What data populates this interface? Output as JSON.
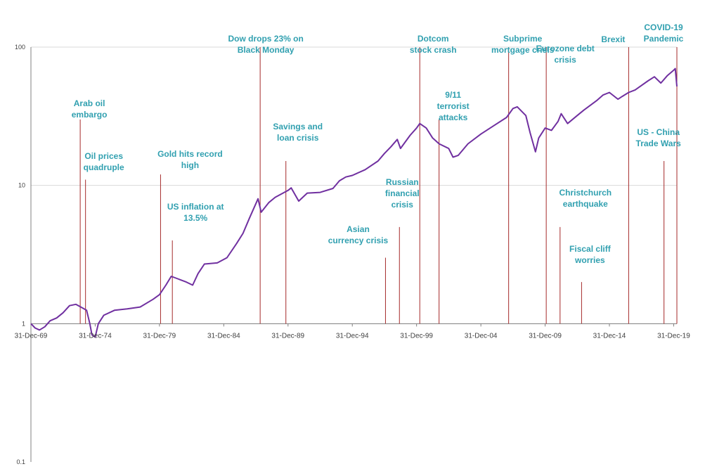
{
  "chart_data": {
    "type": "line",
    "title": "",
    "xlabel": "",
    "ylabel": "",
    "y_scale": "log",
    "ylim": [
      0.1,
      100
    ],
    "xlim": [
      "1969-12-31",
      "2020-03-31"
    ],
    "grid": {
      "horizontal": true,
      "vertical": false
    },
    "line_color": "#7030a0",
    "event_line_color": "#a52a2a",
    "annotation_color": "#31a0b0",
    "y_ticks": [
      {
        "value": 0.1,
        "label": "0.1"
      },
      {
        "value": 1,
        "label": "1"
      },
      {
        "value": 10,
        "label": "10"
      },
      {
        "value": 100,
        "label": "100"
      }
    ],
    "x_ticks": [
      {
        "date": "1969-12-31",
        "label": "31-Dec-69"
      },
      {
        "date": "1974-12-31",
        "label": "31-Dec-74"
      },
      {
        "date": "1979-12-31",
        "label": "31-Dec-79"
      },
      {
        "date": "1984-12-31",
        "label": "31-Dec-84"
      },
      {
        "date": "1989-12-31",
        "label": "31-Dec-89"
      },
      {
        "date": "1994-12-31",
        "label": "31-Dec-94"
      },
      {
        "date": "1999-12-31",
        "label": "31-Dec-99"
      },
      {
        "date": "2004-12-31",
        "label": "31-Dec-04"
      },
      {
        "date": "2009-12-31",
        "label": "31-Dec-09"
      },
      {
        "date": "2014-12-31",
        "label": "31-Dec-14"
      },
      {
        "date": "2019-12-31",
        "label": "31-Dec-19"
      }
    ],
    "series": [
      {
        "points": [
          [
            "1969-12-31",
            1.0
          ],
          [
            "1970-04-30",
            0.93
          ],
          [
            "1970-08-31",
            0.9
          ],
          [
            "1971-01-31",
            0.95
          ],
          [
            "1971-06-30",
            1.05
          ],
          [
            "1971-12-31",
            1.1
          ],
          [
            "1972-06-30",
            1.2
          ],
          [
            "1972-12-31",
            1.35
          ],
          [
            "1973-06-30",
            1.38
          ],
          [
            "1973-12-31",
            1.3
          ],
          [
            "1974-04-30",
            1.25
          ],
          [
            "1974-07-31",
            1.0
          ],
          [
            "1974-09-30",
            0.83
          ],
          [
            "1974-12-31",
            0.8
          ],
          [
            "1975-03-31",
            1.0
          ],
          [
            "1975-08-31",
            1.15
          ],
          [
            "1976-06-30",
            1.25
          ],
          [
            "1977-06-30",
            1.28
          ],
          [
            "1978-06-30",
            1.32
          ],
          [
            "1979-06-30",
            1.5
          ],
          [
            "1979-12-31",
            1.62
          ],
          [
            "1980-06-30",
            1.9
          ],
          [
            "1980-11-30",
            2.2
          ],
          [
            "1981-06-30",
            2.1
          ],
          [
            "1982-01-31",
            2.0
          ],
          [
            "1982-07-31",
            1.9
          ],
          [
            "1982-12-31",
            2.3
          ],
          [
            "1983-06-30",
            2.7
          ],
          [
            "1984-06-30",
            2.75
          ],
          [
            "1985-03-31",
            3.0
          ],
          [
            "1985-12-31",
            3.8
          ],
          [
            "1986-06-30",
            4.5
          ],
          [
            "1986-12-31",
            5.8
          ],
          [
            "1987-08-31",
            8.0
          ],
          [
            "1987-11-30",
            6.4
          ],
          [
            "1988-06-30",
            7.5
          ],
          [
            "1988-12-31",
            8.2
          ],
          [
            "1989-12-31",
            9.2
          ],
          [
            "1990-03-31",
            9.6
          ],
          [
            "1990-10-31",
            7.7
          ],
          [
            "1991-06-30",
            8.8
          ],
          [
            "1992-06-30",
            8.9
          ],
          [
            "1993-06-30",
            9.5
          ],
          [
            "1993-12-31",
            10.8
          ],
          [
            "1994-06-30",
            11.5
          ],
          [
            "1994-12-31",
            11.8
          ],
          [
            "1995-12-31",
            13.0
          ],
          [
            "1996-12-31",
            15.0
          ],
          [
            "1997-06-30",
            17.0
          ],
          [
            "1997-12-31",
            19.0
          ],
          [
            "1998-06-30",
            21.5
          ],
          [
            "1998-09-30",
            18.5
          ],
          [
            "1999-06-30",
            23.0
          ],
          [
            "1999-12-31",
            26.0
          ],
          [
            "2000-03-31",
            28.0
          ],
          [
            "2000-09-30",
            26.0
          ],
          [
            "2001-03-31",
            22.0
          ],
          [
            "2001-09-30",
            20.0
          ],
          [
            "2002-06-30",
            18.5
          ],
          [
            "2002-10-31",
            16.0
          ],
          [
            "2003-03-31",
            16.5
          ],
          [
            "2003-12-31",
            20.0
          ],
          [
            "2004-12-31",
            23.5
          ],
          [
            "2005-12-31",
            27.0
          ],
          [
            "2006-12-31",
            31.0
          ],
          [
            "2007-06-30",
            36.0
          ],
          [
            "2007-10-31",
            37.0
          ],
          [
            "2008-06-30",
            32.0
          ],
          [
            "2008-10-31",
            24.0
          ],
          [
            "2009-03-31",
            17.5
          ],
          [
            "2009-06-30",
            22.0
          ],
          [
            "2009-12-31",
            26.0
          ],
          [
            "2010-06-30",
            25.0
          ],
          [
            "2010-12-31",
            29.0
          ],
          [
            "2011-03-31",
            33.0
          ],
          [
            "2011-09-30",
            28.0
          ],
          [
            "2012-06-30",
            32.0
          ],
          [
            "2012-12-31",
            35.0
          ],
          [
            "2013-12-31",
            41.0
          ],
          [
            "2014-06-30",
            45.0
          ],
          [
            "2014-12-31",
            47.0
          ],
          [
            "2015-08-31",
            42.0
          ],
          [
            "2015-12-31",
            44.0
          ],
          [
            "2016-06-30",
            47.0
          ],
          [
            "2016-12-31",
            49.0
          ],
          [
            "2017-12-31",
            57.0
          ],
          [
            "2018-06-30",
            61.0
          ],
          [
            "2018-12-31",
            55.0
          ],
          [
            "2019-06-30",
            62.0
          ],
          [
            "2019-12-31",
            68.0
          ],
          [
            "2020-02-15",
            70.0
          ],
          [
            "2020-03-31",
            52.0
          ]
        ]
      }
    ],
    "annotations": [
      {
        "lines": [
          "Arab oil",
          "embargo"
        ],
        "date": "1973-10-31",
        "line_top": 30
      },
      {
        "lines": [
          "Oil prices",
          "quadruple"
        ],
        "date": "1974-03-31",
        "line_top": 11
      },
      {
        "lines": [
          "Gold hits record",
          "high"
        ],
        "date": "1980-01-31",
        "line_top": 12
      },
      {
        "lines": [
          "US inflation at",
          "13.5%"
        ],
        "date": "1980-12-31",
        "line_top": 4
      },
      {
        "lines": [
          "Dow drops 23% on",
          "Black Monday"
        ],
        "date": "1987-10-31",
        "line_top": 100
      },
      {
        "lines": [
          "Savings and",
          "loan crisis"
        ],
        "date": "1989-10-31",
        "line_top": 15
      },
      {
        "lines": [
          "Asian",
          "currency crisis"
        ],
        "date": "1997-07-31",
        "line_top": 3
      },
      {
        "lines": [
          "Russian",
          "financial",
          "crisis"
        ],
        "date": "1998-08-31",
        "line_top": 5
      },
      {
        "lines": [
          "Dotcom",
          "stock crash"
        ],
        "date": "2000-03-31",
        "line_top": 100
      },
      {
        "lines": [
          "9/11",
          "terrorist",
          "attacks"
        ],
        "date": "2001-09-30",
        "line_top": 30
      },
      {
        "lines": [
          "Subprime",
          "mortgage crisis"
        ],
        "date": "2007-02-28",
        "line_top": 100
      },
      {
        "lines": [
          "Eurozone debt",
          "crisis"
        ],
        "date": "2010-01-31",
        "line_top": 100
      },
      {
        "lines": [
          "Christchurch",
          "earthquake"
        ],
        "date": "2011-02-28",
        "line_top": 5
      },
      {
        "lines": [
          "Fiscal cliff",
          "worries"
        ],
        "date": "2012-10-31",
        "line_top": 2
      },
      {
        "lines": [
          "Brexit"
        ],
        "date": "2016-06-30",
        "line_top": 100
      },
      {
        "lines": [
          "US - China",
          "Trade Wars"
        ],
        "date": "2019-03-31",
        "line_top": 15
      },
      {
        "lines": [
          "COVID-19",
          "Pandemic"
        ],
        "date": "2020-03-31",
        "line_top": 100
      }
    ]
  }
}
